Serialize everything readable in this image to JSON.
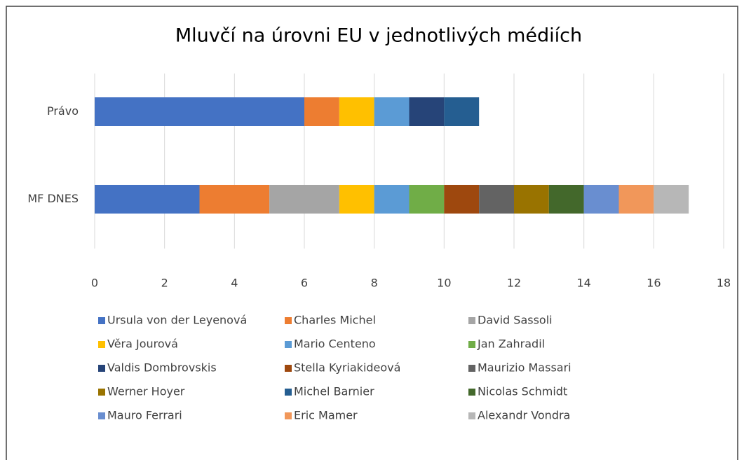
{
  "chart_data": {
    "type": "stacked-bar-horizontal",
    "title": "Mluvčí na úrovni EU v jednotlivých médiích",
    "categories": [
      "Právo",
      "MF DNES"
    ],
    "series": [
      {
        "name": "Ursula von der Leyenová",
        "color": "#4472c4",
        "values": [
          6,
          3
        ]
      },
      {
        "name": "Charles Michel",
        "color": "#ed7d31",
        "values": [
          1,
          2
        ]
      },
      {
        "name": "David Sassoli",
        "color": "#a5a5a5",
        "values": [
          0,
          2
        ]
      },
      {
        "name": "Věra Jourová",
        "color": "#ffc000",
        "values": [
          1,
          1
        ]
      },
      {
        "name": "Mario Centeno",
        "color": "#5b9bd5",
        "values": [
          1,
          1
        ]
      },
      {
        "name": "Jan Zahradil",
        "color": "#70ad47",
        "values": [
          0,
          1
        ]
      },
      {
        "name": "Valdis Dombrovskis",
        "color": "#264478",
        "values": [
          1,
          0
        ]
      },
      {
        "name": "Stella Kyriakideová",
        "color": "#9e480e",
        "values": [
          0,
          1
        ]
      },
      {
        "name": "Maurizio Massari",
        "color": "#636363",
        "values": [
          0,
          1
        ]
      },
      {
        "name": "Werner Hoyer",
        "color": "#997300",
        "values": [
          0,
          1
        ]
      },
      {
        "name": "Michel Barnier",
        "color": "#255e91",
        "values": [
          1,
          0
        ]
      },
      {
        "name": "Nicolas Schmidt",
        "color": "#43682b",
        "values": [
          0,
          1
        ]
      },
      {
        "name": "Mauro Ferrari",
        "color": "#698ed0",
        "values": [
          0,
          1
        ]
      },
      {
        "name": "Eric Mamer",
        "color": "#f1975a",
        "values": [
          0,
          1
        ]
      },
      {
        "name": "Alexandr Vondra",
        "color": "#b7b7b7",
        "values": [
          0,
          1
        ]
      }
    ],
    "xlim": [
      0,
      18
    ],
    "xticks": [
      0,
      2,
      4,
      6,
      8,
      10,
      12,
      14,
      16,
      18
    ],
    "grid": true,
    "legend": "bottom"
  }
}
